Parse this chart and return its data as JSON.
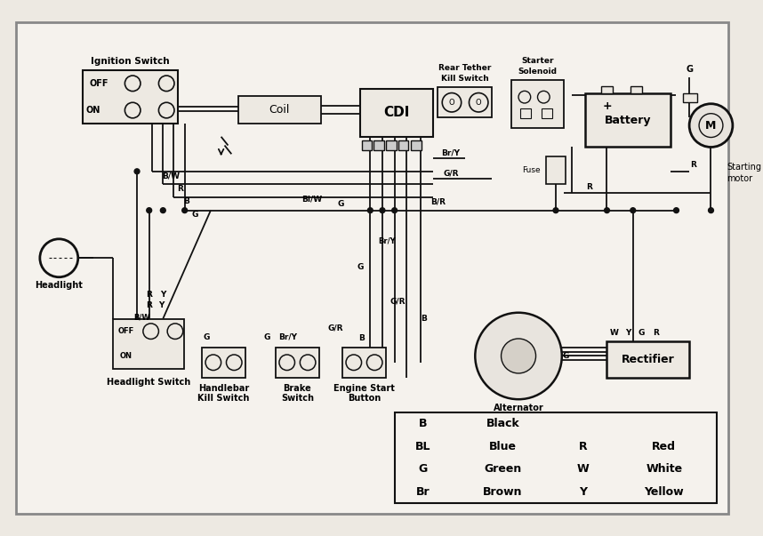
{
  "bg_color": "#ede9e2",
  "line_color": "#111111",
  "legend_table": {
    "col1": [
      "B",
      "BL",
      "G",
      "Br"
    ],
    "col2": [
      "Black",
      "Blue",
      "Green",
      "Brown"
    ],
    "col3": [
      "",
      "R",
      "W",
      "Y"
    ],
    "col4": [
      "",
      "Red",
      "White",
      "Yellow"
    ]
  }
}
